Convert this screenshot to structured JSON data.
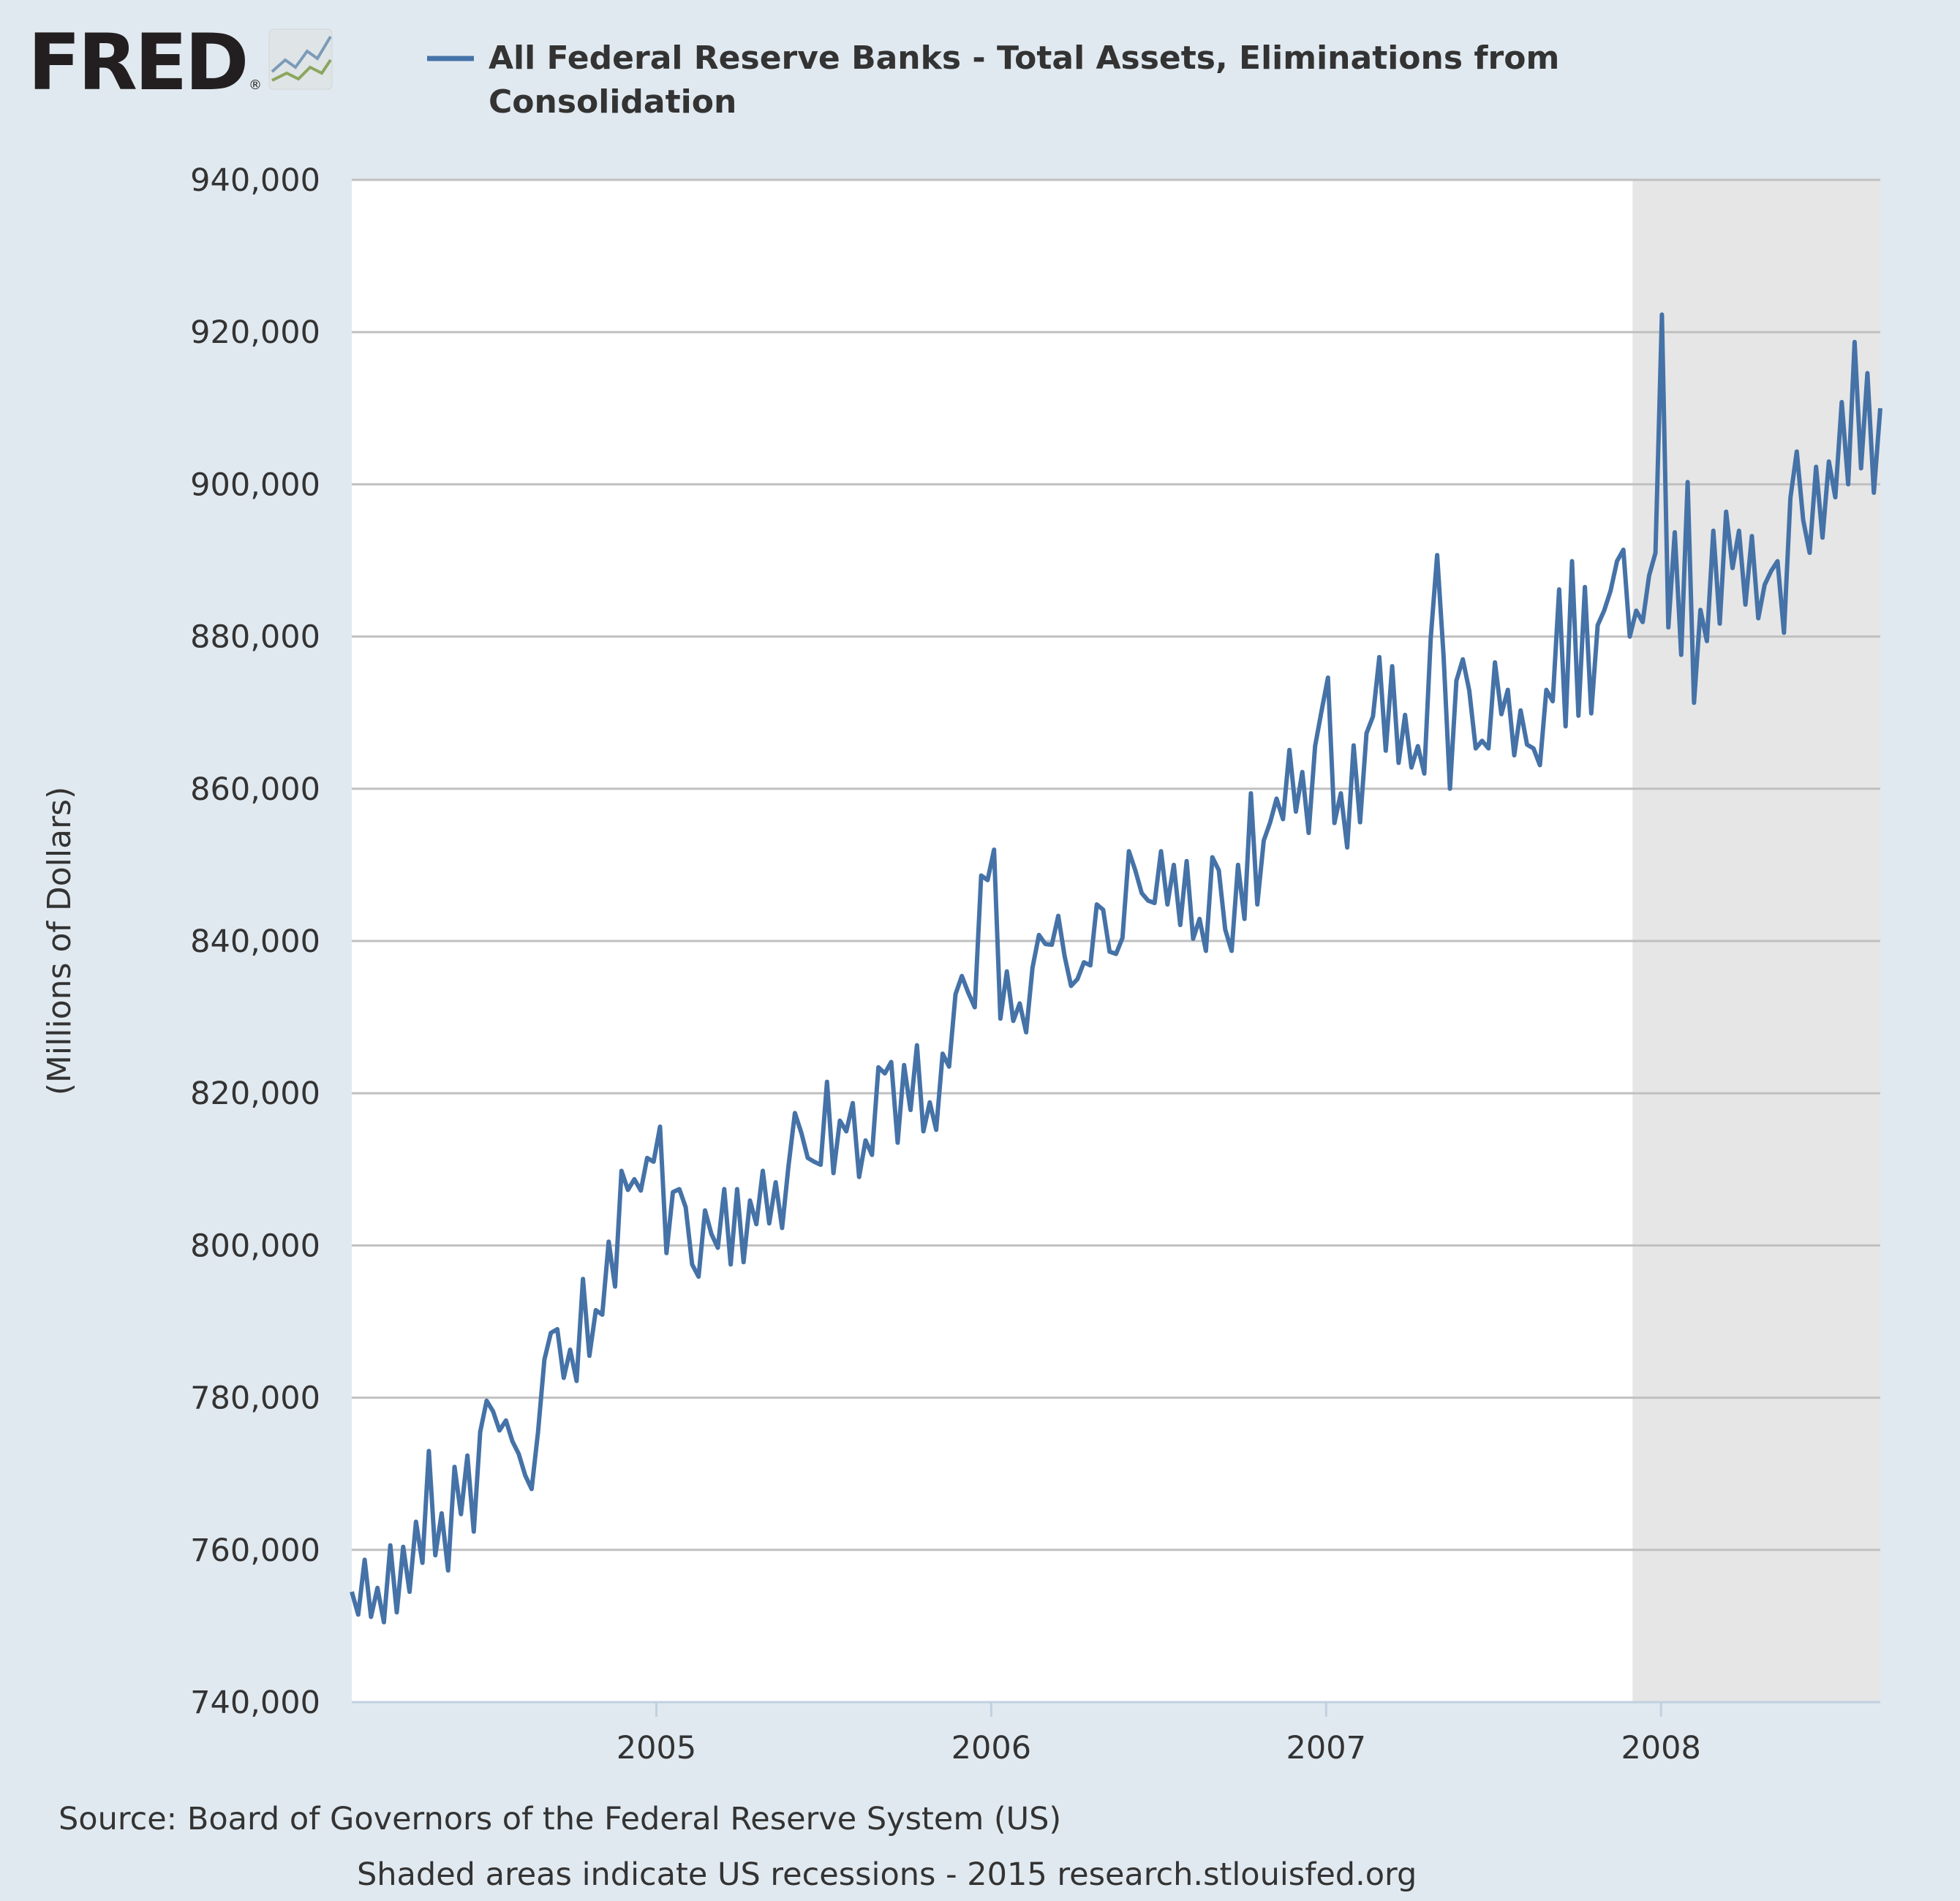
{
  "logo": {
    "text": "FRED",
    "registered": "®",
    "icon": "trend-lines-icon"
  },
  "legend": {
    "line1": "All Federal Reserve Banks - Total Assets, Eliminations from",
    "line2": "Consolidation"
  },
  "footer": {
    "source": "Source: Board of Governors of the Federal Reserve System (US)",
    "note": "Shaded areas indicate US recessions - 2015 research.stlouisfed.org"
  },
  "colors": {
    "background": "#e1e9f0",
    "plot_background": "#ffffff",
    "series": "#4572a7",
    "recession_shade": "#e6e6e6",
    "gridline": "#c0c0c0",
    "text": "#333333"
  },
  "chart_data": {
    "type": "line",
    "title": "",
    "xlabel": "",
    "ylabel": "(Millions of Dollars)",
    "ylim": [
      740000,
      940000
    ],
    "xlim": [
      "2004-02-04",
      "2008-08-27"
    ],
    "grid": true,
    "legend_position": "top",
    "yticks": [
      740000,
      760000,
      780000,
      800000,
      820000,
      840000,
      860000,
      880000,
      900000,
      920000,
      940000
    ],
    "ytick_labels": [
      "740,000",
      "760,000",
      "780,000",
      "800,000",
      "820,000",
      "840,000",
      "860,000",
      "880,000",
      "900,000",
      "920,000",
      "940,000"
    ],
    "xticks": [
      {
        "label": "2005",
        "date": "2005-01-01"
      },
      {
        "label": "2006",
        "date": "2006-01-01"
      },
      {
        "label": "2007",
        "date": "2007-01-01"
      },
      {
        "label": "2008",
        "date": "2008-01-01"
      }
    ],
    "recessions": [
      {
        "start": "2007-12-01",
        "end": "2008-08-27"
      }
    ],
    "series": [
      {
        "name": "All Federal Reserve Banks - Total Assets, Eliminations from Consolidation",
        "points": [
          [
            "2004-02-04",
            754500
          ],
          [
            "2004-02-11",
            751500
          ],
          [
            "2004-02-18",
            758700
          ],
          [
            "2004-02-25",
            751200
          ],
          [
            "2004-03-03",
            755000
          ],
          [
            "2004-03-10",
            750500
          ],
          [
            "2004-03-17",
            760600
          ],
          [
            "2004-03-24",
            751800
          ],
          [
            "2004-03-31",
            760400
          ],
          [
            "2004-04-07",
            754500
          ],
          [
            "2004-04-14",
            763700
          ],
          [
            "2004-04-21",
            758300
          ],
          [
            "2004-04-28",
            773000
          ],
          [
            "2004-05-05",
            759300
          ],
          [
            "2004-05-12",
            764800
          ],
          [
            "2004-05-19",
            757300
          ],
          [
            "2004-05-26",
            770900
          ],
          [
            "2004-06-02",
            764700
          ],
          [
            "2004-06-09",
            772400
          ],
          [
            "2004-06-16",
            762400
          ],
          [
            "2004-06-23",
            775500
          ],
          [
            "2004-06-30",
            779600
          ],
          [
            "2004-07-07",
            778200
          ],
          [
            "2004-07-14",
            775700
          ],
          [
            "2004-07-21",
            777000
          ],
          [
            "2004-07-28",
            774300
          ],
          [
            "2004-08-04",
            772600
          ],
          [
            "2004-08-11",
            769800
          ],
          [
            "2004-08-18",
            768000
          ],
          [
            "2004-08-25",
            775500
          ],
          [
            "2004-09-01",
            785000
          ],
          [
            "2004-09-08",
            788500
          ],
          [
            "2004-09-15",
            789000
          ],
          [
            "2004-09-22",
            782600
          ],
          [
            "2004-09-29",
            786300
          ],
          [
            "2004-10-06",
            782200
          ],
          [
            "2004-10-13",
            795600
          ],
          [
            "2004-10-20",
            785500
          ],
          [
            "2004-10-27",
            791500
          ],
          [
            "2004-11-03",
            790900
          ],
          [
            "2004-11-10",
            800500
          ],
          [
            "2004-11-17",
            794600
          ],
          [
            "2004-11-24",
            809800
          ],
          [
            "2004-12-01",
            807300
          ],
          [
            "2004-12-08",
            808700
          ],
          [
            "2004-12-15",
            807200
          ],
          [
            "2004-12-22",
            811500
          ],
          [
            "2004-12-29",
            811000
          ],
          [
            "2005-01-05",
            815600
          ],
          [
            "2005-01-12",
            799000
          ],
          [
            "2005-01-19",
            807000
          ],
          [
            "2005-01-26",
            807400
          ],
          [
            "2005-02-02",
            805000
          ],
          [
            "2005-02-09",
            797500
          ],
          [
            "2005-02-16",
            795900
          ],
          [
            "2005-02-23",
            804600
          ],
          [
            "2005-03-02",
            801500
          ],
          [
            "2005-03-09",
            799700
          ],
          [
            "2005-03-16",
            807400
          ],
          [
            "2005-03-23",
            797500
          ],
          [
            "2005-03-30",
            807400
          ],
          [
            "2005-04-06",
            797800
          ],
          [
            "2005-04-13",
            805900
          ],
          [
            "2005-04-20",
            802800
          ],
          [
            "2005-04-27",
            809800
          ],
          [
            "2005-05-04",
            802900
          ],
          [
            "2005-05-11",
            808300
          ],
          [
            "2005-05-18",
            802300
          ],
          [
            "2005-05-25",
            810400
          ],
          [
            "2005-06-01",
            817400
          ],
          [
            "2005-06-08",
            814800
          ],
          [
            "2005-06-15",
            811500
          ],
          [
            "2005-06-22",
            811000
          ],
          [
            "2005-06-29",
            810600
          ],
          [
            "2005-07-06",
            821500
          ],
          [
            "2005-07-13",
            809500
          ],
          [
            "2005-07-20",
            816400
          ],
          [
            "2005-07-27",
            815000
          ],
          [
            "2005-08-03",
            818700
          ],
          [
            "2005-08-10",
            809000
          ],
          [
            "2005-08-17",
            813800
          ],
          [
            "2005-08-24",
            811900
          ],
          [
            "2005-08-31",
            823400
          ],
          [
            "2005-09-07",
            822600
          ],
          [
            "2005-09-14",
            824100
          ],
          [
            "2005-09-21",
            813500
          ],
          [
            "2005-09-28",
            823700
          ],
          [
            "2005-10-05",
            817800
          ],
          [
            "2005-10-12",
            826300
          ],
          [
            "2005-10-19",
            815000
          ],
          [
            "2005-10-26",
            818800
          ],
          [
            "2005-11-02",
            815200
          ],
          [
            "2005-11-09",
            825200
          ],
          [
            "2005-11-16",
            823500
          ],
          [
            "2005-11-23",
            833000
          ],
          [
            "2005-11-30",
            835400
          ],
          [
            "2005-12-07",
            833200
          ],
          [
            "2005-12-14",
            831300
          ],
          [
            "2005-12-21",
            848600
          ],
          [
            "2005-12-28",
            848000
          ],
          [
            "2006-01-04",
            852000
          ],
          [
            "2006-01-11",
            829800
          ],
          [
            "2006-01-18",
            836000
          ],
          [
            "2006-01-25",
            829500
          ],
          [
            "2006-02-01",
            831800
          ],
          [
            "2006-02-08",
            828000
          ],
          [
            "2006-02-15",
            836500
          ],
          [
            "2006-02-22",
            840800
          ],
          [
            "2006-03-01",
            839600
          ],
          [
            "2006-03-08",
            839500
          ],
          [
            "2006-03-15",
            843300
          ],
          [
            "2006-03-22",
            838000
          ],
          [
            "2006-03-29",
            834100
          ],
          [
            "2006-04-05",
            835000
          ],
          [
            "2006-04-12",
            837200
          ],
          [
            "2006-04-19",
            836800
          ],
          [
            "2006-04-26",
            844800
          ],
          [
            "2006-05-03",
            844100
          ],
          [
            "2006-05-10",
            838600
          ],
          [
            "2006-05-17",
            838300
          ],
          [
            "2006-05-24",
            840400
          ],
          [
            "2006-05-31",
            851800
          ],
          [
            "2006-06-07",
            849300
          ],
          [
            "2006-06-14",
            846300
          ],
          [
            "2006-06-21",
            845300
          ],
          [
            "2006-06-28",
            845000
          ],
          [
            "2006-07-05",
            851800
          ],
          [
            "2006-07-12",
            844800
          ],
          [
            "2006-07-19",
            850000
          ],
          [
            "2006-07-26",
            842100
          ],
          [
            "2006-08-02",
            850500
          ],
          [
            "2006-08-09",
            840300
          ],
          [
            "2006-08-16",
            842900
          ],
          [
            "2006-08-23",
            838700
          ],
          [
            "2006-08-30",
            851000
          ],
          [
            "2006-09-06",
            849300
          ],
          [
            "2006-09-13",
            841500
          ],
          [
            "2006-09-20",
            838700
          ],
          [
            "2006-09-27",
            850000
          ],
          [
            "2006-10-04",
            842900
          ],
          [
            "2006-10-11",
            859400
          ],
          [
            "2006-10-18",
            844800
          ],
          [
            "2006-10-25",
            853200
          ],
          [
            "2006-11-01",
            855600
          ],
          [
            "2006-11-08",
            858700
          ],
          [
            "2006-11-15",
            856000
          ],
          [
            "2006-11-22",
            865100
          ],
          [
            "2006-11-29",
            857000
          ],
          [
            "2006-12-06",
            862200
          ],
          [
            "2006-12-13",
            854200
          ],
          [
            "2006-12-20",
            865600
          ],
          [
            "2006-12-27",
            870200
          ],
          [
            "2007-01-03",
            874600
          ],
          [
            "2007-01-10",
            855500
          ],
          [
            "2007-01-17",
            859400
          ],
          [
            "2007-01-24",
            852300
          ],
          [
            "2007-01-31",
            865700
          ],
          [
            "2007-02-07",
            855600
          ],
          [
            "2007-02-14",
            867300
          ],
          [
            "2007-02-21",
            869500
          ],
          [
            "2007-02-28",
            877300
          ],
          [
            "2007-03-07",
            865000
          ],
          [
            "2007-03-14",
            876100
          ],
          [
            "2007-03-21",
            863400
          ],
          [
            "2007-03-28",
            869700
          ],
          [
            "2007-04-04",
            862800
          ],
          [
            "2007-04-11",
            865600
          ],
          [
            "2007-04-18",
            862000
          ],
          [
            "2007-04-25",
            879800
          ],
          [
            "2007-05-02",
            890700
          ],
          [
            "2007-05-09",
            877400
          ],
          [
            "2007-05-16",
            860000
          ],
          [
            "2007-05-23",
            874200
          ],
          [
            "2007-05-30",
            877000
          ],
          [
            "2007-06-06",
            872900
          ],
          [
            "2007-06-13",
            865300
          ],
          [
            "2007-06-20",
            866300
          ],
          [
            "2007-06-27",
            865300
          ],
          [
            "2007-07-04",
            876600
          ],
          [
            "2007-07-11",
            869800
          ],
          [
            "2007-07-18",
            873000
          ],
          [
            "2007-07-25",
            864400
          ],
          [
            "2007-08-01",
            870300
          ],
          [
            "2007-08-08",
            865800
          ],
          [
            "2007-08-15",
            865300
          ],
          [
            "2007-08-22",
            863100
          ],
          [
            "2007-08-29",
            873000
          ],
          [
            "2007-09-05",
            871500
          ],
          [
            "2007-09-12",
            886200
          ],
          [
            "2007-09-19",
            868200
          ],
          [
            "2007-09-26",
            889900
          ],
          [
            "2007-10-03",
            869600
          ],
          [
            "2007-10-10",
            886500
          ],
          [
            "2007-10-17",
            869900
          ],
          [
            "2007-10-24",
            881500
          ],
          [
            "2007-10-31",
            883400
          ],
          [
            "2007-11-07",
            886000
          ],
          [
            "2007-11-14",
            889900
          ],
          [
            "2007-11-21",
            891400
          ],
          [
            "2007-11-28",
            880000
          ],
          [
            "2007-12-05",
            883400
          ],
          [
            "2007-12-12",
            881900
          ],
          [
            "2007-12-19",
            888000
          ],
          [
            "2007-12-26",
            891000
          ],
          [
            "2008-01-02",
            922300
          ],
          [
            "2008-01-09",
            881200
          ],
          [
            "2008-01-16",
            893700
          ],
          [
            "2008-01-23",
            877600
          ],
          [
            "2008-01-30",
            900300
          ],
          [
            "2008-02-06",
            871300
          ],
          [
            "2008-02-13",
            883500
          ],
          [
            "2008-02-20",
            879400
          ],
          [
            "2008-02-27",
            893900
          ],
          [
            "2008-03-05",
            881700
          ],
          [
            "2008-03-12",
            896400
          ],
          [
            "2008-03-19",
            889000
          ],
          [
            "2008-03-26",
            893900
          ],
          [
            "2008-04-02",
            884200
          ],
          [
            "2008-04-09",
            893200
          ],
          [
            "2008-04-16",
            882400
          ],
          [
            "2008-04-23",
            886800
          ],
          [
            "2008-04-30",
            888600
          ],
          [
            "2008-05-07",
            889900
          ],
          [
            "2008-05-14",
            880500
          ],
          [
            "2008-05-21",
            898200
          ],
          [
            "2008-05-28",
            904300
          ],
          [
            "2008-06-04",
            895300
          ],
          [
            "2008-06-11",
            891000
          ],
          [
            "2008-06-18",
            902300
          ],
          [
            "2008-06-25",
            893000
          ],
          [
            "2008-07-02",
            903000
          ],
          [
            "2008-07-09",
            898300
          ],
          [
            "2008-07-16",
            910800
          ],
          [
            "2008-07-23",
            900000
          ],
          [
            "2008-07-30",
            918700
          ],
          [
            "2008-08-06",
            902100
          ],
          [
            "2008-08-13",
            914600
          ],
          [
            "2008-08-20",
            898900
          ],
          [
            "2008-08-27",
            910000
          ]
        ]
      }
    ]
  }
}
